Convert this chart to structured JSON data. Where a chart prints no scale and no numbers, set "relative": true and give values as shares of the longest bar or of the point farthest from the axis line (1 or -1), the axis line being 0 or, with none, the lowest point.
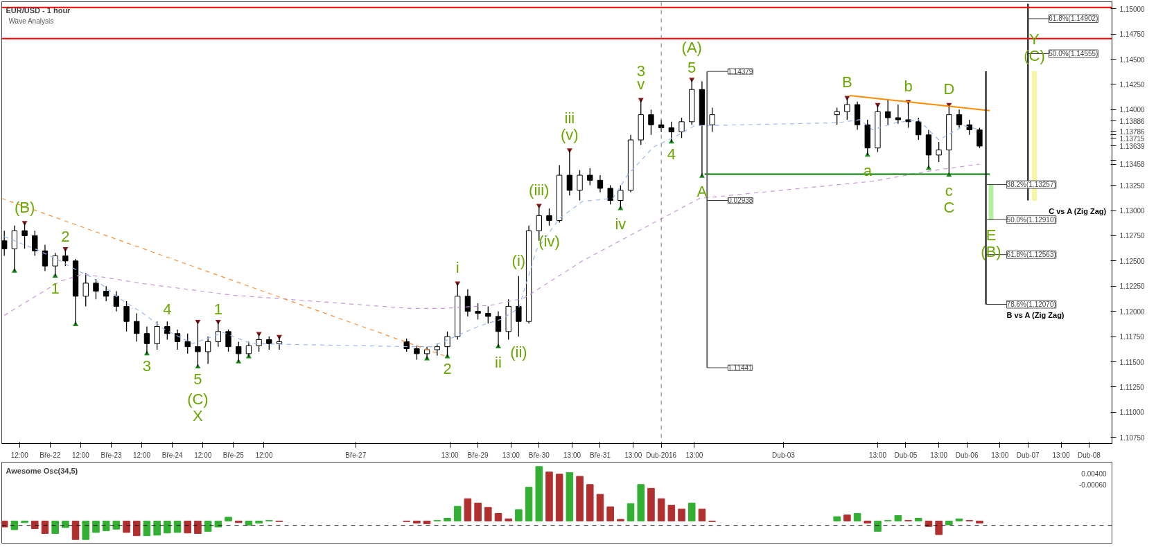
{
  "chart_data": [
    {
      "type": "candlestick",
      "title": "EUR/USD - 1 hour",
      "subtitle": "Wave Analysis",
      "x": [
        "2016-03-21T06:00",
        "2016-03-21T10:00",
        "2016-03-21T14:00",
        "2016-03-21T18:00",
        "2016-03-21T22:00",
        "2016-03-22T02:00",
        "2016-03-22T06:00",
        "2016-03-22T10:00",
        "2016-03-22T14:00",
        "2016-03-22T18:00",
        "2016-03-22T22:00",
        "2016-03-23T02:00",
        "2016-03-23T06:00",
        "2016-03-23T10:00",
        "2016-03-23T14:00",
        "2016-03-23T18:00",
        "2016-03-23T22:00",
        "2016-03-24T02:00",
        "2016-03-24T06:00",
        "2016-03-24T10:00",
        "2016-03-24T14:00",
        "2016-03-24T18:00",
        "2016-03-24T22:00",
        "2016-03-25T02:00",
        "2016-03-25T06:00",
        "2016-03-25T10:00",
        "2016-03-25T14:00",
        "2016-03-25T18:00",
        "2016-03-27T20:00",
        "2016-03-28T00:00",
        "2016-03-28T04:00",
        "2016-03-28T08:00",
        "2016-03-28T12:00",
        "2016-03-28T16:00",
        "2016-03-28T20:00",
        "2016-03-29T00:00",
        "2016-03-29T04:00",
        "2016-03-29T08:00",
        "2016-03-29T12:00",
        "2016-03-29T16:00",
        "2016-03-29T20:00",
        "2016-03-30T00:00",
        "2016-03-30T04:00",
        "2016-03-30T08:00",
        "2016-03-30T12:00",
        "2016-03-30T16:00",
        "2016-03-30T20:00",
        "2016-03-31T00:00",
        "2016-03-31T04:00",
        "2016-03-31T08:00",
        "2016-03-31T12:00",
        "2016-03-31T16:00",
        "2016-03-31T20:00",
        "2016-04-01T00:00",
        "2016-04-01T04:00",
        "2016-04-01T08:00",
        "2016-04-01T12:00",
        "2016-04-01T16:00",
        "2016-04-01T20:00",
        "2016-04-03T21:00",
        "2016-04-04T01:00",
        "2016-04-04T05:00",
        "2016-04-04T09:00",
        "2016-04-04T13:00",
        "2016-04-04T17:00",
        "2016-04-04T21:00",
        "2016-04-05T01:00",
        "2016-04-05T05:00",
        "2016-04-05T09:00",
        "2016-04-05T13:00",
        "2016-04-05T17:00",
        "2016-04-05T21:00",
        "2016-04-06T01:00",
        "2016-04-06T05:00"
      ],
      "ohlc": [
        [
          1.127,
          1.128,
          1.1255,
          1.1262
        ],
        [
          1.1262,
          1.1285,
          1.124,
          1.128
        ],
        [
          1.128,
          1.1288,
          1.1262,
          1.1275
        ],
        [
          1.1275,
          1.128,
          1.1255,
          1.126
        ],
        [
          1.126,
          1.1266,
          1.124,
          1.1245
        ],
        [
          1.1245,
          1.1258,
          1.1235,
          1.1255
        ],
        [
          1.1255,
          1.1262,
          1.1245,
          1.125
        ],
        [
          1.125,
          1.1252,
          1.1187,
          1.1215
        ],
        [
          1.1215,
          1.1238,
          1.1205,
          1.1228
        ],
        [
          1.1228,
          1.1232,
          1.1212,
          1.122
        ],
        [
          1.122,
          1.1225,
          1.121,
          1.1215
        ],
        [
          1.1215,
          1.122,
          1.12,
          1.1205
        ],
        [
          1.1205,
          1.121,
          1.118,
          1.119
        ],
        [
          1.119,
          1.1198,
          1.117,
          1.1178
        ],
        [
          1.1178,
          1.1185,
          1.1158,
          1.1168
        ],
        [
          1.1168,
          1.119,
          1.1162,
          1.1185
        ],
        [
          1.1185,
          1.119,
          1.1172,
          1.1178
        ],
        [
          1.1178,
          1.1182,
          1.1162,
          1.117
        ],
        [
          1.117,
          1.1178,
          1.1158,
          1.1165
        ],
        [
          1.1165,
          1.119,
          1.1145,
          1.116
        ],
        [
          1.116,
          1.1175,
          1.1148,
          1.117
        ],
        [
          1.117,
          1.119,
          1.1165,
          1.118
        ],
        [
          1.118,
          1.1182,
          1.116,
          1.1165
        ],
        [
          1.1165,
          1.117,
          1.115,
          1.1158
        ],
        [
          1.1158,
          1.117,
          1.1155,
          1.1166
        ],
        [
          1.1166,
          1.1178,
          1.116,
          1.1172
        ],
        [
          1.1172,
          1.1175,
          1.1162,
          1.1168
        ],
        [
          1.1168,
          1.1175,
          1.1162,
          1.117
        ],
        [
          1.117,
          1.1173,
          1.116,
          1.1163
        ],
        [
          1.1163,
          1.1166,
          1.1152,
          1.1158
        ],
        [
          1.1158,
          1.1165,
          1.1153,
          1.1162
        ],
        [
          1.1162,
          1.1168,
          1.1156,
          1.1165
        ],
        [
          1.1165,
          1.118,
          1.1155,
          1.1175
        ],
        [
          1.1175,
          1.1228,
          1.1172,
          1.1215
        ],
        [
          1.1215,
          1.1222,
          1.1195,
          1.12
        ],
        [
          1.12,
          1.1208,
          1.1192,
          1.1198
        ],
        [
          1.1198,
          1.1205,
          1.1188,
          1.1195
        ],
        [
          1.1195,
          1.12,
          1.1165,
          1.118
        ],
        [
          1.118,
          1.1212,
          1.1172,
          1.1205
        ],
        [
          1.1205,
          1.1235,
          1.1175,
          1.119
        ],
        [
          1.119,
          1.1285,
          1.1188,
          1.128
        ],
        [
          1.128,
          1.1305,
          1.127,
          1.1295
        ],
        [
          1.1295,
          1.1302,
          1.1285,
          1.129
        ],
        [
          1.129,
          1.1345,
          1.1288,
          1.1335
        ],
        [
          1.1335,
          1.136,
          1.1315,
          1.132
        ],
        [
          1.132,
          1.134,
          1.131,
          1.1335
        ],
        [
          1.1335,
          1.1342,
          1.1325,
          1.133
        ],
        [
          1.133,
          1.1335,
          1.1318,
          1.1322
        ],
        [
          1.1322,
          1.1325,
          1.1306,
          1.131
        ],
        [
          1.131,
          1.1325,
          1.1302,
          1.132
        ],
        [
          1.132,
          1.1375,
          1.1318,
          1.137
        ],
        [
          1.137,
          1.141,
          1.1365,
          1.1395
        ],
        [
          1.1395,
          1.14,
          1.1375,
          1.1385
        ],
        [
          1.1385,
          1.139,
          1.1378,
          1.1382
        ],
        [
          1.1382,
          1.1388,
          1.1368,
          1.1378
        ],
        [
          1.1378,
          1.1392,
          1.1372,
          1.1388
        ],
        [
          1.1388,
          1.143,
          1.1385,
          1.142
        ],
        [
          1.142,
          1.1428,
          1.1334,
          1.1385
        ],
        [
          1.1385,
          1.1402,
          1.1378,
          1.1395
        ],
        [
          1.1395,
          1.1402,
          1.1385,
          1.1398
        ],
        [
          1.1398,
          1.1412,
          1.139,
          1.1405
        ],
        [
          1.1405,
          1.1408,
          1.138,
          1.1385
        ],
        [
          1.1385,
          1.139,
          1.1355,
          1.1362
        ],
        [
          1.1362,
          1.1405,
          1.1358,
          1.1398
        ],
        [
          1.1398,
          1.141,
          1.1385,
          1.1392
        ],
        [
          1.1392,
          1.1405,
          1.1386,
          1.139
        ],
        [
          1.139,
          1.1408,
          1.1382,
          1.1388
        ],
        [
          1.1388,
          1.1392,
          1.137,
          1.1375
        ],
        [
          1.1375,
          1.138,
          1.1342,
          1.1355
        ],
        [
          1.1355,
          1.1368,
          1.1348,
          1.136
        ],
        [
          1.136,
          1.1405,
          1.1335,
          1.1395
        ],
        [
          1.1395,
          1.14,
          1.1382,
          1.1385
        ],
        [
          1.1385,
          1.139,
          1.1375,
          1.138
        ],
        [
          1.138,
          1.1382,
          1.1362,
          1.13639
        ]
      ],
      "xlim": [
        "2016-03-21T05:00",
        "2016-04-08T09:00"
      ],
      "xticks": [
        {
          "value": "2016-03-21T12:00",
          "label": "12:00"
        },
        {
          "value": "2016-03-22",
          "label": "Bře-22"
        },
        {
          "value": "2016-03-22T12:00",
          "label": "12:00"
        },
        {
          "value": "2016-03-23",
          "label": "Bře-23"
        },
        {
          "value": "2016-03-23T12:00",
          "label": "12:00"
        },
        {
          "value": "2016-03-24",
          "label": "Bře-24"
        },
        {
          "value": "2016-03-24T12:00",
          "label": "12:00"
        },
        {
          "value": "2016-03-25",
          "label": "Bře-25"
        },
        {
          "value": "2016-03-25T12:00",
          "label": "12:00"
        },
        {
          "value": "2016-03-27",
          "label": "Bře-27"
        },
        {
          "value": "2016-03-28T13:00",
          "label": "13:00"
        },
        {
          "value": "2016-03-29",
          "label": "Bře-29"
        },
        {
          "value": "2016-03-29T13:00",
          "label": "13:00"
        },
        {
          "value": "2016-03-30",
          "label": "Bře-30"
        },
        {
          "value": "2016-03-30T13:00",
          "label": "13:00"
        },
        {
          "value": "2016-03-31",
          "label": "Bře-31"
        },
        {
          "value": "2016-03-31T13:00",
          "label": "13:00"
        },
        {
          "value": "2016-04-01",
          "label": "Dub-2016"
        },
        {
          "value": "2016-04-01T13:00",
          "label": "13:00"
        },
        {
          "value": "2016-04-03",
          "label": "Dub-03"
        },
        {
          "value": "2016-04-04T13:00",
          "label": "13:00"
        },
        {
          "value": "2016-04-05",
          "label": "Dub-05"
        },
        {
          "value": "2016-04-05T13:00",
          "label": "13:00"
        },
        {
          "value": "2016-04-06",
          "label": "Dub-06"
        },
        {
          "value": "2016-04-06T13:00",
          "label": "13:00"
        },
        {
          "value": "2016-04-07",
          "label": "Dub-07"
        },
        {
          "value": "2016-04-07T13:00",
          "label": "13:00"
        },
        {
          "value": "2016-04-08",
          "label": "Dub-08"
        }
      ],
      "ylim": [
        1.1069,
        1.1507
      ],
      "yticks": [
        {
          "value": 1.1075,
          "label": "1.10750"
        },
        {
          "value": 1.11,
          "label": "1.11000"
        },
        {
          "value": 1.1125,
          "label": "1.11250"
        },
        {
          "value": 1.115,
          "label": "1.11500"
        },
        {
          "value": 1.1175,
          "label": "1.11750"
        },
        {
          "value": 1.12,
          "label": "1.12000"
        },
        {
          "value": 1.1225,
          "label": "1.12250"
        },
        {
          "value": 1.125,
          "label": "1.12500"
        },
        {
          "value": 1.1275,
          "label": "1.12750"
        },
        {
          "value": 1.13,
          "label": "1.13000"
        },
        {
          "value": 1.1325,
          "label": "1.13250"
        },
        {
          "value": 1.13458,
          "label": "1.13458"
        },
        {
          "value": 1.135,
          "label": null
        },
        {
          "value": 1.13639,
          "label": "1.13639"
        },
        {
          "value": 1.13715,
          "label": "1.13715"
        },
        {
          "value": 1.1375,
          "label": null
        },
        {
          "value": 1.13786,
          "label": "1.13786"
        },
        {
          "value": 1.13886,
          "label": "1.13886"
        },
        {
          "value": 1.14,
          "label": "1.14000"
        },
        {
          "value": 1.1425,
          "label": "1.14250"
        },
        {
          "value": 1.145,
          "label": "1.14500"
        },
        {
          "value": 1.1475,
          "label": "1.14750"
        },
        {
          "value": 1.15,
          "label": "1.15000"
        }
      ],
      "series": [
        {
          "type": "line",
          "color": "#99b8f5",
          "line_style": "dashed",
          "x": [
            "2016-03-21T06:00",
            "2016-03-21T19:00",
            "2016-03-22T04:00",
            "2016-03-22T11:00",
            "2016-03-22T17:00",
            "2016-03-23T03:00",
            "2016-03-23T12:00",
            "2016-03-23T21:00",
            "2016-03-24T08:00",
            "2016-03-24T20:00",
            "2016-03-25T07:00",
            "2016-03-27T21:00",
            "2016-03-28T06:00",
            "2016-03-28T15:00",
            "2016-03-29T00:00",
            "2016-03-29T09:00",
            "2016-03-29T16:00",
            "2016-03-29T23:00",
            "2016-03-30T08:00",
            "2016-03-30T17:00",
            "2016-03-31T05:00",
            "2016-03-31T11:00",
            "2016-03-31T21:00",
            "2016-04-01T06:00",
            "2016-04-01T13:00",
            "2016-04-03T21:00",
            "2016-04-04T06:00",
            "2016-04-04T11:00",
            "2016-04-04T20:00",
            "2016-04-05T05:00",
            "2016-04-05T13:00",
            "2016-04-05T23:00",
            "2016-04-06T05:00"
          ],
          "values": [
            1.1274,
            1.1261,
            1.125,
            1.124,
            1.1233,
            1.1213,
            1.1199,
            1.1182,
            1.1168,
            1.1179,
            1.1168,
            1.1165,
            1.1165,
            1.1175,
            1.1185,
            1.1192,
            1.1203,
            1.1261,
            1.1292,
            1.1309,
            1.1312,
            1.1336,
            1.1363,
            1.1374,
            1.1384,
            1.1387,
            1.139,
            1.138,
            1.1387,
            1.139,
            1.137,
            1.1384,
            1.138
          ]
        },
        {
          "type": "line",
          "color": "#c896d8",
          "line_style": "dashed",
          "x": [
            "2016-03-21T06:00",
            "2016-03-22T04:00",
            "2016-03-22T13:00",
            "2016-03-23T14:00",
            "2016-03-25T00:00",
            "2016-03-27T21:00",
            "2016-03-28T11:00",
            "2016-03-29T05:00",
            "2016-03-29T18:00",
            "2016-03-30T17:00",
            "2016-03-31T16:00",
            "2016-04-01T15:00",
            "2016-04-04T11:00",
            "2016-04-05T09:00",
            "2016-04-06T05:00"
          ],
          "values": [
            1.1196,
            1.123,
            1.1237,
            1.1227,
            1.1216,
            1.1203,
            1.1203,
            1.1206,
            1.1213,
            1.125,
            1.1281,
            1.1312,
            1.1329,
            1.1339,
            1.1346
          ]
        },
        {
          "type": "line",
          "color": "#ff8c32",
          "line_style": "dashed",
          "x": [
            "2016-03-21T05:00",
            "2016-03-28T12:00"
          ],
          "values": [
            1.1312,
            1.1155
          ]
        },
        {
          "type": "line",
          "color": "#ff8c00",
          "line_style": "solid",
          "x": [
            "2016-04-04T02:00",
            "2016-04-06T09:00"
          ],
          "values": [
            1.1414,
            1.1399
          ]
        },
        {
          "type": "line",
          "color": "#007a00",
          "line_style": "solid",
          "x": [
            "2016-04-01T17:00",
            "2016-04-06T09:00"
          ],
          "values": [
            1.1336,
            1.1336
          ]
        },
        {
          "type": "line",
          "color": "#666666",
          "line_style": "solid",
          "x": [
            "2016-04-01T18:00",
            "2016-04-01T18:00"
          ],
          "values": [
            1.11441,
            1.14379
          ]
        },
        {
          "type": "line",
          "name": "B vs A (Zig Zag)",
          "color": "#000000",
          "line_style": "solid",
          "x": [
            "2016-04-06T07:30",
            "2016-04-06T07:30"
          ],
          "values": [
            1.1438,
            1.1207
          ]
        },
        {
          "type": "line",
          "name": "C vs A (Zig Zag)",
          "color": "#000000",
          "line_style": "solid",
          "x": [
            "2016-04-07T00:00",
            "2016-04-07T00:00"
          ],
          "values": [
            1.1505,
            1.131
          ]
        },
        {
          "type": "bar",
          "color": "#b4f0a0",
          "x": [
            "2016-04-06T09:30"
          ],
          "base": [
            1.13257
          ],
          "values": [
            -0.00347
          ]
        },
        {
          "type": "bar",
          "color": "#f8f4a0",
          "x": [
            "2016-04-07T02:30"
          ],
          "base": [
            1.131
          ],
          "values": [
            0.0128
          ]
        },
        {
          "type": "scatter",
          "marker": "triangle",
          "color": "#8b1a1a",
          "x": [
            "2016-03-21T14:00",
            "2016-03-22T06:00",
            "2016-03-24T10:00",
            "2016-03-24T18:00",
            "2016-03-25T10:00",
            "2016-03-25T18:00",
            "2016-03-28T16:00",
            "2016-03-30T00:00",
            "2016-03-30T12:00",
            "2016-03-31T16:00",
            "2016-04-01T12:00",
            "2016-04-04T01:00",
            "2016-04-04T13:00",
            "2016-04-05T01:00",
            "2016-04-05T17:00"
          ],
          "values": [
            1.1288,
            1.1262,
            1.119,
            1.119,
            1.1178,
            1.1175,
            1.1228,
            1.1305,
            1.136,
            1.141,
            1.143,
            1.1412,
            1.1405,
            1.1408,
            1.1405
          ]
        },
        {
          "type": "scatter",
          "marker": "triangle",
          "color": "#1a8a1a",
          "x": [
            "2016-03-21T10:00",
            "2016-03-22T02:00",
            "2016-03-22T10:00",
            "2016-03-23T14:00",
            "2016-03-24T10:00",
            "2016-03-25T02:00",
            "2016-03-25T06:00",
            "2016-03-28T04:00",
            "2016-03-28T12:00",
            "2016-03-29T08:00",
            "2016-03-31T08:00",
            "2016-04-01T04:00",
            "2016-04-01T16:00",
            "2016-04-04T09:00",
            "2016-04-05T09:00",
            "2016-04-05T17:00"
          ],
          "values": [
            1.124,
            1.1235,
            1.1187,
            1.1158,
            1.1145,
            1.115,
            1.1155,
            1.1153,
            1.1155,
            1.1165,
            1.1302,
            1.1368,
            1.1334,
            1.1355,
            1.1342,
            1.1335
          ]
        }
      ],
      "ref_lines": [
        {
          "axis": "y",
          "value": 1.15013,
          "color": "#ff0000",
          "line_style": "solid"
        },
        {
          "axis": "y",
          "value": 1.14705,
          "color": "#ff0000",
          "line_style": "solid"
        },
        {
          "axis": "x",
          "value": "2016-04-01",
          "color": "#777777",
          "line_style": "dashed"
        }
      ],
      "annotations": [
        {
          "text": "(B)",
          "x": "2016-03-21T14:00",
          "y": 1.1288
        },
        {
          "text": "2",
          "x": "2016-03-22T06:00",
          "y": 1.1262
        },
        {
          "text": "4",
          "x": "2016-03-23T22:00",
          "y": 1.119
        },
        {
          "text": "1",
          "x": "2016-03-24T18:00",
          "y": 1.119
        },
        {
          "text": "i",
          "x": "2016-03-28T16:00",
          "y": 1.1228
        },
        {
          "text": "(i)",
          "x": "2016-03-29T16:00",
          "y": 1.1235
        },
        {
          "text": "(iii)",
          "x": "2016-03-30T00:00",
          "y": 1.1305
        },
        {
          "text": "(v)",
          "x": "2016-03-30T12:00",
          "y": 1.136
        },
        {
          "text": "iii",
          "x": "2016-03-30T12:00",
          "y": 1.136
        },
        {
          "text": "v",
          "x": "2016-03-31T16:00",
          "y": 1.141
        },
        {
          "text": "3",
          "x": "2016-03-31T16:00",
          "y": 1.141
        },
        {
          "text": "5",
          "x": "2016-04-01T12:00",
          "y": 1.143
        },
        {
          "text": "(A)",
          "x": "2016-04-01T12:00",
          "y": 1.143
        },
        {
          "text": "B",
          "x": "2016-04-04T01:00",
          "y": 1.1412
        },
        {
          "text": "b",
          "x": "2016-04-05T01:00",
          "y": 1.1408
        },
        {
          "text": "D",
          "x": "2016-04-05T17:00",
          "y": 1.1405
        },
        {
          "text": "1",
          "x": "2016-03-22T02:00",
          "y": 1.1235
        },
        {
          "text": "3",
          "x": "2016-03-23T14:00",
          "y": 1.1158
        },
        {
          "text": "5",
          "x": "2016-03-24T10:00",
          "y": 1.1145
        },
        {
          "text": "(C)",
          "x": "2016-03-24T10:00",
          "y": 1.1145
        },
        {
          "text": "X",
          "x": "2016-03-24T10:00",
          "y": 1.1145
        },
        {
          "text": "2",
          "x": "2016-03-28T12:00",
          "y": 1.1155
        },
        {
          "text": "ii",
          "x": "2016-03-29T08:00",
          "y": 1.1165
        },
        {
          "text": "(ii)",
          "x": "2016-03-29T16:00",
          "y": 1.1175
        },
        {
          "text": "(iv)",
          "x": "2016-03-30T04:00",
          "y": 1.1285
        },
        {
          "text": "iv",
          "x": "2016-03-31T08:00",
          "y": 1.1302
        },
        {
          "text": "4",
          "x": "2016-04-01T04:00",
          "y": 1.1368
        },
        {
          "text": "A",
          "x": "2016-04-01T16:00",
          "y": 1.1334
        },
        {
          "text": "a",
          "x": "2016-04-04T09:00",
          "y": 1.1355
        },
        {
          "text": "c",
          "x": "2016-04-05T17:00",
          "y": 1.1335
        },
        {
          "text": "C",
          "x": "2016-04-05T17:00",
          "y": 1.1335
        },
        {
          "text": "E",
          "x": "2016-04-06T09:30",
          "y": 1.1291
        },
        {
          "text": "(B)",
          "x": "2016-04-06T09:30",
          "y": 1.1291
        },
        {
          "text": "(C)",
          "x": "2016-04-07T02:30",
          "y": 1.1438
        },
        {
          "text": "Y",
          "x": "2016-04-07T02:30",
          "y": 1.1438
        },
        {
          "text": "1.14379",
          "x": "2016-04-01T18:00",
          "y": 1.14379
        },
        {
          "text": "1.11441",
          "x": "2016-04-01T18:00",
          "y": 1.11441
        },
        {
          "text": "0.02938",
          "x": "2016-04-01T18:00",
          "y": 1.131
        },
        {
          "text": "38.2%(1.13257)",
          "x": "2016-04-06T07:30",
          "y": 1.13257
        },
        {
          "text": "50.0%(1.12910)",
          "x": "2016-04-06T07:30",
          "y": 1.1291
        },
        {
          "text": "61.8%(1.12563)",
          "x": "2016-04-06T07:30",
          "y": 1.12563
        },
        {
          "text": "78.6%(1.12070)",
          "x": "2016-04-06T07:30",
          "y": 1.1207
        },
        {
          "text": "61.8%(1.14902)",
          "x": "2016-04-07T00:00",
          "y": 1.14902
        },
        {
          "text": "50.0%(1.14555)",
          "x": "2016-04-07T00:00",
          "y": 1.14555
        }
      ]
    },
    {
      "type": "bar",
      "title": "Awesome Osc(34,5)",
      "relative": true,
      "tick_labels": false,
      "x": [
        "2016-03-21T06:00",
        "2016-03-21T10:00",
        "2016-03-21T14:00",
        "2016-03-21T18:00",
        "2016-03-21T22:00",
        "2016-03-22T02:00",
        "2016-03-22T06:00",
        "2016-03-22T10:00",
        "2016-03-22T14:00",
        "2016-03-22T18:00",
        "2016-03-22T22:00",
        "2016-03-23T02:00",
        "2016-03-23T06:00",
        "2016-03-23T10:00",
        "2016-03-23T14:00",
        "2016-03-23T18:00",
        "2016-03-23T22:00",
        "2016-03-24T02:00",
        "2016-03-24T06:00",
        "2016-03-24T10:00",
        "2016-03-24T14:00",
        "2016-03-24T18:00",
        "2016-03-24T22:00",
        "2016-03-25T02:00",
        "2016-03-25T06:00",
        "2016-03-25T10:00",
        "2016-03-25T14:00",
        "2016-03-25T18:00",
        "2016-03-27T20:00",
        "2016-03-28T00:00",
        "2016-03-28T04:00",
        "2016-03-28T08:00",
        "2016-03-28T12:00",
        "2016-03-28T16:00",
        "2016-03-28T20:00",
        "2016-03-29T00:00",
        "2016-03-29T04:00",
        "2016-03-29T08:00",
        "2016-03-29T12:00",
        "2016-03-29T16:00",
        "2016-03-29T20:00",
        "2016-03-30T00:00",
        "2016-03-30T04:00",
        "2016-03-30T08:00",
        "2016-03-30T12:00",
        "2016-03-30T16:00",
        "2016-03-30T20:00",
        "2016-03-31T00:00",
        "2016-03-31T04:00",
        "2016-03-31T08:00",
        "2016-03-31T12:00",
        "2016-03-31T16:00",
        "2016-03-31T20:00",
        "2016-04-01T00:00",
        "2016-04-01T04:00",
        "2016-04-01T08:00",
        "2016-04-01T12:00",
        "2016-04-01T16:00",
        "2016-04-01T20:00",
        "2016-04-03T21:00",
        "2016-04-04T01:00",
        "2016-04-04T05:00",
        "2016-04-04T09:00",
        "2016-04-04T13:00",
        "2016-04-04T17:00",
        "2016-04-04T21:00",
        "2016-04-05T01:00",
        "2016-04-05T05:00",
        "2016-04-05T09:00",
        "2016-04-05T13:00",
        "2016-04-05T17:00",
        "2016-04-05T21:00",
        "2016-04-06T01:00",
        "2016-04-06T05:00"
      ],
      "xlim": [
        "2016-03-21T05:00",
        "2016-04-08T09:00"
      ],
      "values": [
        -0.11,
        -0.16,
        -0.03,
        -0.14,
        -0.23,
        -0.23,
        -0.12,
        -0.34,
        -0.34,
        -0.21,
        -0.18,
        -0.15,
        -0.21,
        -0.27,
        -0.27,
        -0.26,
        -0.22,
        -0.21,
        -0.22,
        -0.23,
        -0.19,
        -0.11,
        0.07,
        -0.03,
        -0.08,
        -0.04,
        0.01,
        -0.01,
        -0.01,
        -0.04,
        -0.05,
        0.01,
        0.05,
        0.27,
        0.41,
        0.33,
        0.25,
        0.14,
        0.04,
        0.21,
        0.62,
        1,
        0.9,
        0.86,
        0.89,
        0.82,
        0.67,
        0.49,
        0.26,
        0.03,
        0.32,
        0.67,
        0.6,
        0.41,
        0.29,
        0.22,
        0.33,
        0.22,
        -0.01,
        0.08,
        0.11,
        0.14,
        -0.04,
        -0.19,
        0.01,
        0.1,
        0.01,
        0.05,
        -0.1,
        -0.25,
        -0.07,
        0.04,
        0.01,
        -0.04
      ],
      "colors": [
        "#b03030",
        "#33b033",
        "#33b033",
        "#b03030",
        "#b03030",
        "#33b033",
        "#33b033",
        "#b03030",
        "#33b033",
        "#33b033",
        "#33b033",
        "#33b033",
        "#b03030",
        "#b03030",
        "#33b033",
        "#33b033",
        "#33b033",
        "#33b033",
        "#b03030",
        "#b03030",
        "#33b033",
        "#33b033",
        "#33b033",
        "#b03030",
        "#33b033",
        "#33b033",
        "#33b033",
        "#b03030",
        "#b03030",
        "#b03030",
        "#b03030",
        "#33b033",
        "#33b033",
        "#33b033",
        "#b03030",
        "#b03030",
        "#b03030",
        "#b03030",
        "#b03030",
        "#33b033",
        "#33b033",
        "#33b033",
        "#b03030",
        "#b03030",
        "#33b033",
        "#b03030",
        "#b03030",
        "#b03030",
        "#b03030",
        "#b03030",
        "#33b033",
        "#33b033",
        "#b03030",
        "#b03030",
        "#b03030",
        "#b03030",
        "#33b033",
        "#b03030",
        "#b03030",
        "#33b033",
        "#b03030",
        "#33b033",
        "#b03030",
        "#33b033",
        "#33b033",
        "#33b033",
        "#b03030",
        "#33b033",
        "#b03030",
        "#b03030",
        "#33b033",
        "#33b033",
        "#b03030",
        "#b03030"
      ],
      "annotations": [
        "0.00400",
        "-0.00060"
      ],
      "ref_lines": [
        {
          "axis": "y",
          "value": -0.08,
          "color": "#000000",
          "line_style": "dashed"
        }
      ]
    }
  ]
}
